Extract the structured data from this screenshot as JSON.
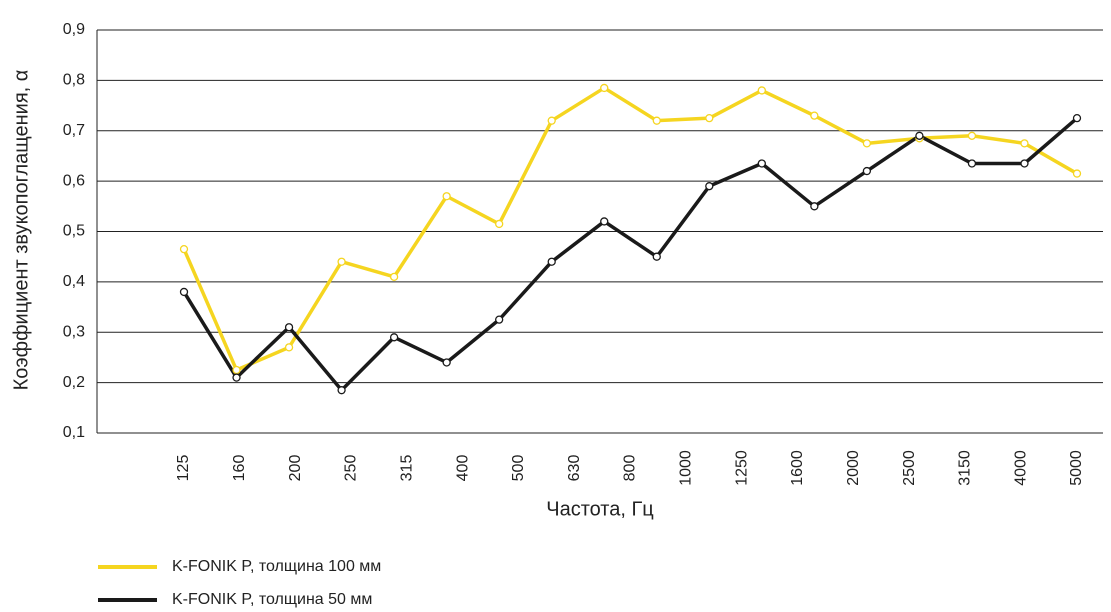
{
  "chart_data": {
    "type": "line",
    "xlabel": "Частота, Гц",
    "ylabel": "Коэффициент звукопоглащения, α",
    "categories": [
      "125",
      "160",
      "200",
      "250",
      "315",
      "400",
      "500",
      "630",
      "800",
      "1000",
      "1250",
      "1600",
      "2000",
      "2500",
      "3150",
      "4000",
      "5000",
      null
    ],
    "series": [
      {
        "name": "K-FONIK P, толщина 100 мм",
        "color": "#f5d520",
        "values": [
          0.465,
          0.225,
          0.27,
          0.44,
          0.41,
          0.57,
          0.515,
          0.72,
          0.785,
          0.72,
          0.725,
          0.78,
          0.73,
          0.675,
          0.685,
          0.69,
          0.675,
          0.615
        ]
      },
      {
        "name": "K-FONIK P, толщина 50 мм",
        "color": "#1a1a1a",
        "values": [
          0.38,
          0.21,
          0.31,
          0.185,
          0.29,
          0.24,
          0.325,
          0.44,
          0.52,
          0.45,
          0.59,
          0.635,
          0.55,
          0.62,
          0.69,
          0.635,
          0.635,
          0.725
        ]
      }
    ],
    "ylim": [
      0.1,
      0.9
    ],
    "yticks": [
      {
        "value": 0.1,
        "label": "0,1"
      },
      {
        "value": 0.2,
        "label": "0,2"
      },
      {
        "value": 0.3,
        "label": "0,3"
      },
      {
        "value": 0.4,
        "label": "0,4"
      },
      {
        "value": 0.5,
        "label": "0,5"
      },
      {
        "value": 0.6,
        "label": "0,6"
      },
      {
        "value": 0.7,
        "label": "0,7"
      },
      {
        "value": 0.8,
        "label": "0,8"
      },
      {
        "value": 0.9,
        "label": "0,9"
      }
    ],
    "grid": true,
    "legend": "bottom-left"
  }
}
